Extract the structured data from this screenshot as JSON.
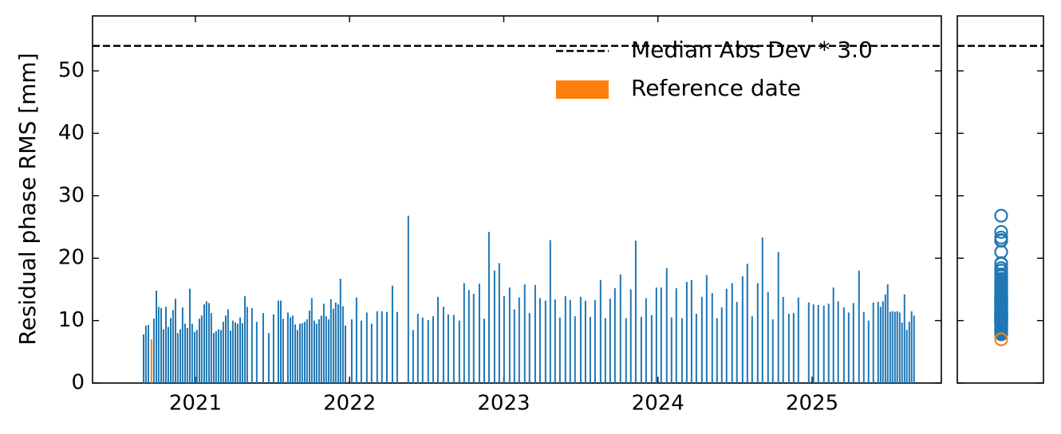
{
  "chart_data": {
    "type": "bar",
    "y_label": "Residual phase RMS [mm]",
    "xlim": [
      2020.333,
      2025.838
    ],
    "xticks": [
      2021,
      2022,
      2023,
      2024,
      2025
    ],
    "ylim": [
      0,
      58.8
    ],
    "yticks": [
      0,
      10,
      20,
      30,
      40,
      50
    ],
    "hline": {
      "value": 54,
      "label": "Median Abs Dev * 3.0"
    },
    "legend": "upper right",
    "series": [
      {
        "color": "#1f77b4",
        "x": [
          2020.664,
          2020.679,
          2020.695,
          2020.731,
          2020.747,
          2020.762,
          2020.778,
          2020.793,
          2020.809,
          2020.824,
          2020.84,
          2020.855,
          2020.871,
          2020.886,
          2020.902,
          2020.917,
          2020.933,
          2020.948,
          2020.964,
          2020.979,
          2020.995,
          2021.01,
          2021.026,
          2021.041,
          2021.057,
          2021.072,
          2021.088,
          2021.103,
          2021.119,
          2021.134,
          2021.15,
          2021.166,
          2021.181,
          2021.197,
          2021.212,
          2021.228,
          2021.243,
          2021.259,
          2021.274,
          2021.29,
          2021.305,
          2021.321,
          2021.336,
          2021.367,
          2021.398,
          2021.44,
          2021.476,
          2021.507,
          2021.538,
          2021.554,
          2021.569,
          2021.6,
          2021.616,
          2021.631,
          2021.647,
          2021.662,
          2021.678,
          2021.693,
          2021.709,
          2021.724,
          2021.74,
          2021.755,
          2021.771,
          2021.786,
          2021.802,
          2021.817,
          2021.833,
          2021.848,
          2021.864,
          2021.879,
          2021.895,
          2021.91,
          2021.926,
          2021.941,
          2021.957,
          2021.973,
          2022.014,
          2022.045,
          2022.076,
          2022.112,
          2022.143,
          2022.179,
          2022.21,
          2022.242,
          2022.278,
          2022.309,
          2022.381,
          2022.412,
          2022.443,
          2022.474,
          2022.51,
          2022.542,
          2022.573,
          2022.609,
          2022.64,
          2022.676,
          2022.712,
          2022.743,
          2022.774,
          2022.805,
          2022.842,
          2022.873,
          2022.904,
          2022.94,
          2022.971,
          2023.002,
          2023.038,
          2023.069,
          2023.1,
          2023.136,
          2023.167,
          2023.204,
          2023.235,
          2023.271,
          2023.302,
          2023.333,
          2023.364,
          2023.4,
          2023.431,
          2023.462,
          2023.499,
          2023.53,
          2023.561,
          2023.592,
          2023.628,
          2023.659,
          2023.69,
          2023.721,
          2023.757,
          2023.793,
          2023.824,
          2023.856,
          2023.892,
          2023.923,
          2023.959,
          2023.99,
          2024.021,
          2024.057,
          2024.088,
          2024.119,
          2024.156,
          2024.187,
          2024.218,
          2024.249,
          2024.285,
          2024.316,
          2024.352,
          2024.383,
          2024.414,
          2024.445,
          2024.481,
          2024.512,
          2024.549,
          2024.58,
          2024.611,
          2024.647,
          2024.678,
          2024.714,
          2024.745,
          2024.781,
          2024.812,
          2024.849,
          2024.88,
          2024.911,
          2024.978,
          2025.009,
          2025.04,
          2025.076,
          2025.107,
          2025.138,
          2025.169,
          2025.206,
          2025.237,
          2025.268,
          2025.304,
          2025.335,
          2025.366,
          2025.397,
          2025.428,
          2025.444,
          2025.459,
          2025.475,
          2025.49,
          2025.506,
          2025.521,
          2025.537,
          2025.552,
          2025.568,
          2025.583,
          2025.599,
          2025.614,
          2025.63,
          2025.645,
          2025.661
        ],
        "values": [
          7.8,
          9.2,
          9.3,
          10.3,
          14.8,
          12.2,
          12.0,
          8.6,
          12.2,
          9.0,
          10.4,
          11.7,
          13.5,
          8.0,
          8.6,
          12.1,
          9.5,
          8.8,
          15.1,
          9.5,
          8.2,
          8.5,
          10.3,
          10.8,
          12.6,
          13.1,
          12.8,
          11.2,
          8,
          8.3,
          8.6,
          8.5,
          9.8,
          10.8,
          11.8,
          8.4,
          10,
          9.7,
          9.5,
          10.5,
          9.6,
          13.9,
          12.2,
          12.0,
          9.8,
          11.2,
          8,
          11,
          13.2,
          13.2,
          10.3,
          11.3,
          10.5,
          10.8,
          9.4,
          8.5,
          9.5,
          9.6,
          9.8,
          10.2,
          11.6,
          13.6,
          10,
          9.5,
          10.2,
          10.8,
          12.7,
          10.7,
          10.2,
          13.4,
          11.9,
          12.9,
          12.6,
          16.7,
          12.3,
          9.2,
          10.2,
          13.7,
          10,
          11.3,
          9.5,
          11.5,
          11.5,
          11.4,
          15.6,
          11.4,
          26.8,
          8.5,
          11.1,
          10.5,
          10.1,
          10.7,
          13.8,
          12.2,
          11,
          10.9,
          10,
          16,
          14.9,
          14.3,
          15.9,
          10.3,
          24.2,
          18,
          19.2,
          13.9,
          15.3,
          11.8,
          13.7,
          15.8,
          11.2,
          15.7,
          13.6,
          13.2,
          22.9,
          13.4,
          10.5,
          13.9,
          13.3,
          10.7,
          13.8,
          13.2,
          10.6,
          13.3,
          16.5,
          10.4,
          13.5,
          15.2,
          17.4,
          10.4,
          15,
          22.8,
          10.6,
          13.6,
          10.9,
          15.3,
          15.3,
          18.4,
          10.5,
          15.2,
          10.4,
          16.2,
          16.5,
          11.1,
          13.8,
          17.3,
          14.4,
          10.4,
          12.1,
          15.1,
          16,
          13,
          17.1,
          19.1,
          10.7,
          16,
          23.3,
          14.6,
          10.2,
          21,
          13.8,
          11.1,
          11.2,
          13.7,
          12.9,
          12.6,
          12.5,
          12.4,
          12.7,
          15.3,
          13.1,
          12.1,
          11.3,
          12.8,
          18,
          11.4,
          10,
          12.9,
          13,
          12.2,
          13.1,
          14.2,
          15.8,
          11.4,
          11.5,
          11.4,
          11.5,
          11.3,
          9.7,
          14.2,
          8.5,
          9.8,
          11.5,
          10.8
        ]
      },
      {
        "name": "Reference date",
        "color": "#ff7f0e",
        "x": [
          2020.715
        ],
        "values": [
          7.0
        ]
      }
    ]
  }
}
